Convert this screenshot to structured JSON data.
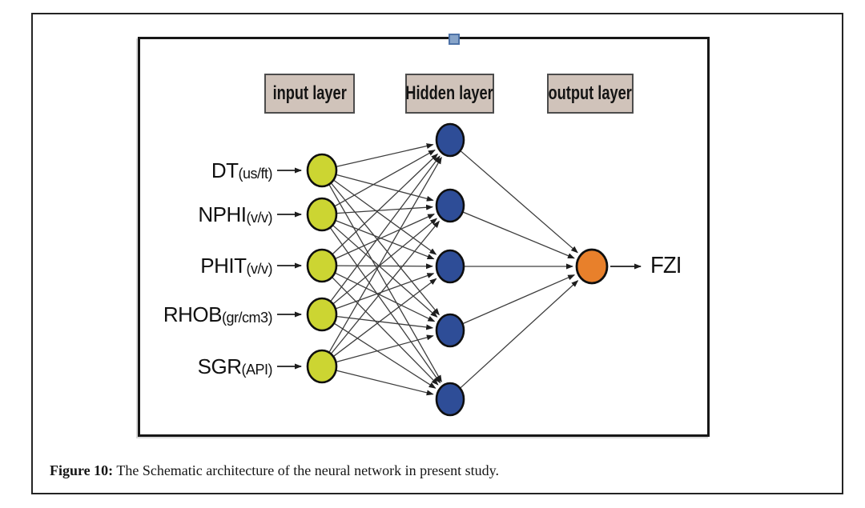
{
  "figure": {
    "caption": {
      "prefix": "Figure 10:",
      "text": " The Schematic architecture of the neural network in present study."
    }
  },
  "diagram": {
    "layer_labels": [
      "input layer",
      "Hidden layer",
      "output layer"
    ],
    "inputs": [
      {
        "name": "DT",
        "unit": "(us/ft)"
      },
      {
        "name": "NPHI",
        "unit": "(v/v)"
      },
      {
        "name": "PHIT",
        "unit": "(v/v)"
      },
      {
        "name": "RHOB",
        "unit": "(gr/cm3)"
      },
      {
        "name": "SGR",
        "unit": "(API)"
      }
    ],
    "hidden_count": 5,
    "output": {
      "label": "FZI"
    },
    "colors": {
      "input_node": "#ccd532",
      "hidden_node": "#2e4d97",
      "output_node": "#e8802b",
      "node_border": "#0f0f0f",
      "edge": "#3d3d3d",
      "arrow": "#1d1d1d",
      "layer_box_fill": "#d0c3ba",
      "layer_box_border": "#4c4c4c",
      "handle_fill": "#87a4c9",
      "handle_border": "#4d72a7"
    }
  }
}
